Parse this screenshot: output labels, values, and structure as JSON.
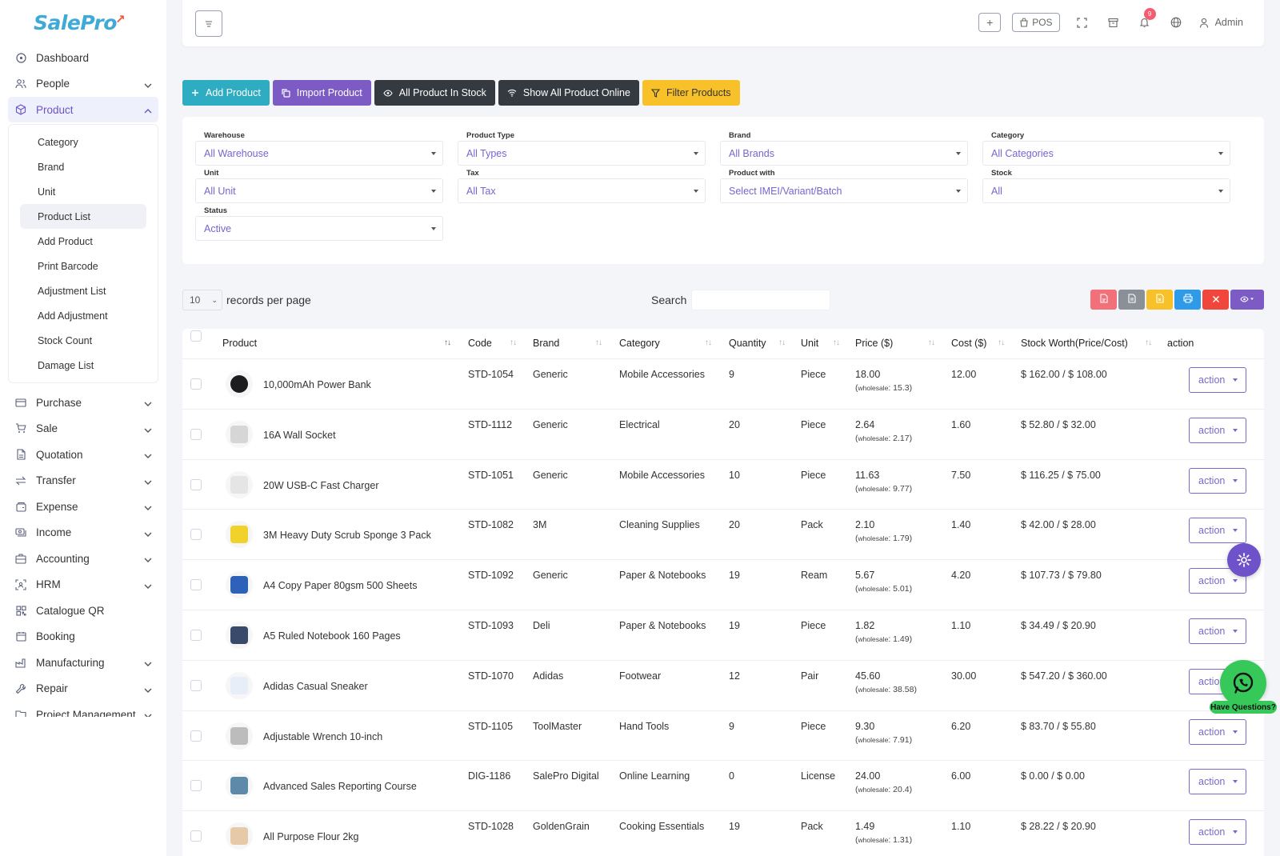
{
  "brand": {
    "name": "SalePro"
  },
  "sidebar": {
    "items": [
      {
        "label": "Dashboard",
        "icon": "dashboard-icon",
        "chevron": false
      },
      {
        "label": "People",
        "icon": "people-icon",
        "chevron": true
      },
      {
        "label": "Product",
        "icon": "product-icon",
        "chevron": true,
        "active": true
      }
    ],
    "product_sub": [
      "Category",
      "Brand",
      "Unit",
      "Product List",
      "Add Product",
      "Print Barcode",
      "Adjustment List",
      "Add Adjustment",
      "Stock Count",
      "Damage List"
    ],
    "product_sub_active": "Product List",
    "items_after": [
      {
        "label": "Purchase",
        "icon": "purchase-icon",
        "chevron": true
      },
      {
        "label": "Sale",
        "icon": "sale-cart-icon",
        "chevron": true
      },
      {
        "label": "Quotation",
        "icon": "quotation-icon",
        "chevron": true
      },
      {
        "label": "Transfer",
        "icon": "transfer-icon",
        "chevron": true
      },
      {
        "label": "Expense",
        "icon": "expense-icon",
        "chevron": true
      },
      {
        "label": "Income",
        "icon": "income-icon",
        "chevron": true
      },
      {
        "label": "Accounting",
        "icon": "accounting-icon",
        "chevron": true
      },
      {
        "label": "HRM",
        "icon": "hrm-icon",
        "chevron": true
      },
      {
        "label": "Catalogue QR",
        "icon": "qr-icon",
        "chevron": false
      },
      {
        "label": "Booking",
        "icon": "booking-icon",
        "chevron": false
      },
      {
        "label": "Manufacturing",
        "icon": "manufacturing-icon",
        "chevron": true
      },
      {
        "label": "Repair",
        "icon": "repair-icon",
        "chevron": true
      },
      {
        "label": "Project Management",
        "icon": "project-icon",
        "chevron": true
      }
    ]
  },
  "header": {
    "pos_label": "POS",
    "notifications": "9",
    "user": "Admin"
  },
  "actions": [
    {
      "label": "Add Product",
      "icon": "plus-icon",
      "color": "#2eacc1"
    },
    {
      "label": "Import Product",
      "icon": "copy-icon",
      "color": "#7c5cc4"
    },
    {
      "label": "All Product In Stock",
      "icon": "eye-icon",
      "color": "#353a40"
    },
    {
      "label": "Show All Product Online",
      "icon": "wifi-icon",
      "color": "#353a40"
    },
    {
      "label": "Filter Products",
      "icon": "filter-icon",
      "color": "#f8c12a"
    }
  ],
  "filters": [
    {
      "label": "Warehouse",
      "value": "All Warehouse"
    },
    {
      "label": "Product Type",
      "value": "All Types"
    },
    {
      "label": "Brand",
      "value": "All Brands"
    },
    {
      "label": "Category",
      "value": "All Categories"
    },
    {
      "label": "Unit",
      "value": "All Unit"
    },
    {
      "label": "Tax",
      "value": "All Tax"
    },
    {
      "label": "Product with",
      "value": "Select IMEI/Variant/Batch"
    },
    {
      "label": "Stock",
      "value": "All"
    },
    {
      "label": "Status",
      "value": "Active"
    }
  ],
  "table_controls": {
    "per_page": "10",
    "per_page_text": "records per page",
    "search_label": "Search",
    "search_value": ""
  },
  "exports": [
    {
      "icon": "pdf-icon",
      "color": "#f2707a"
    },
    {
      "icon": "csv-icon",
      "color": "#8b8f98"
    },
    {
      "icon": "excel-icon",
      "color": "#f8c12a"
    },
    {
      "icon": "print-icon",
      "color": "#2f9be8"
    },
    {
      "icon": "delete-icon",
      "color": "#f0463c"
    },
    {
      "icon": "column-visibility-icon",
      "color": "#7c5cc4"
    }
  ],
  "table": {
    "columns": [
      "Product",
      "Code",
      "Brand",
      "Category",
      "Quantity",
      "Unit",
      "Price ($)",
      "Cost ($)",
      "Stock Worth(Price/Cost)",
      "action"
    ],
    "wholesale_label": "wholesale",
    "action_label": "action",
    "rows": [
      {
        "name": "10,000mAh Power Bank",
        "code": "STD-1054",
        "brand": "Generic",
        "category": "Mobile Accessories",
        "qty": "9",
        "unit": "Piece",
        "price": "18.00",
        "wholesale": "15.3",
        "cost": "12.00",
        "worth": "$ 162.00 / $ 108.00",
        "thumb_color": "#1d1d1f"
      },
      {
        "name": "16A Wall Socket",
        "code": "STD-1112",
        "brand": "Generic",
        "category": "Electrical",
        "qty": "20",
        "unit": "Piece",
        "price": "2.64",
        "wholesale": "2.17",
        "cost": "1.60",
        "worth": "$ 52.80 / $ 32.00",
        "thumb_color": "#d6d6d6"
      },
      {
        "name": "20W USB-C Fast Charger",
        "code": "STD-1051",
        "brand": "Generic",
        "category": "Mobile Accessories",
        "qty": "10",
        "unit": "Piece",
        "price": "11.63",
        "wholesale": "9.77",
        "cost": "7.50",
        "worth": "$ 116.25 / $ 75.00",
        "thumb_color": "#e5e5e5"
      },
      {
        "name": "3M Heavy Duty Scrub Sponge 3 Pack",
        "code": "STD-1082",
        "brand": "3M",
        "category": "Cleaning Supplies",
        "qty": "20",
        "unit": "Pack",
        "price": "2.10",
        "wholesale": "1.79",
        "cost": "1.40",
        "worth": "$ 42.00 / $ 28.00",
        "thumb_color": "#f1d22b"
      },
      {
        "name": "A4 Copy Paper 80gsm 500 Sheets",
        "code": "STD-1092",
        "brand": "Generic",
        "category": "Paper & Notebooks",
        "qty": "19",
        "unit": "Ream",
        "price": "5.67",
        "wholesale": "5.01",
        "cost": "4.20",
        "worth": "$ 107.73 / $ 79.80",
        "thumb_color": "#2d62b8"
      },
      {
        "name": "A5 Ruled Notebook 160 Pages",
        "code": "STD-1093",
        "brand": "Deli",
        "category": "Paper & Notebooks",
        "qty": "19",
        "unit": "Piece",
        "price": "1.82",
        "wholesale": "1.49",
        "cost": "1.10",
        "worth": "$ 34.49 / $ 20.90",
        "thumb_color": "#3a4a6a"
      },
      {
        "name": "Adidas Casual Sneaker",
        "code": "STD-1070",
        "brand": "Adidas",
        "category": "Footwear",
        "qty": "12",
        "unit": "Pair",
        "price": "45.60",
        "wholesale": "38.58",
        "cost": "30.00",
        "worth": "$ 547.20 / $ 360.00",
        "thumb_color": "#e8eef7"
      },
      {
        "name": "Adjustable Wrench 10-inch",
        "code": "STD-1105",
        "brand": "ToolMaster",
        "category": "Hand Tools",
        "qty": "9",
        "unit": "Piece",
        "price": "9.30",
        "wholesale": "7.91",
        "cost": "6.20",
        "worth": "$ 83.70 / $ 55.80",
        "thumb_color": "#bcbcbc"
      },
      {
        "name": "Advanced Sales Reporting Course",
        "code": "DIG-1186",
        "brand": "SalePro Digital",
        "category": "Online Learning",
        "qty": "0",
        "unit": "License",
        "price": "24.00",
        "wholesale": "20.4",
        "cost": "6.00",
        "worth": "$ 0.00 / $ 0.00",
        "thumb_color": "#5d8aa8"
      },
      {
        "name": "All Purpose Flour 2kg",
        "code": "STD-1028",
        "brand": "GoldenGrain",
        "category": "Cooking Essentials",
        "qty": "19",
        "unit": "Pack",
        "price": "1.49",
        "wholesale": "1.31",
        "cost": "1.10",
        "worth": "$ 28.22 / $ 20.90",
        "thumb_color": "#e6c9a8"
      }
    ]
  },
  "floating": {
    "help_label": "Have Questions?"
  }
}
